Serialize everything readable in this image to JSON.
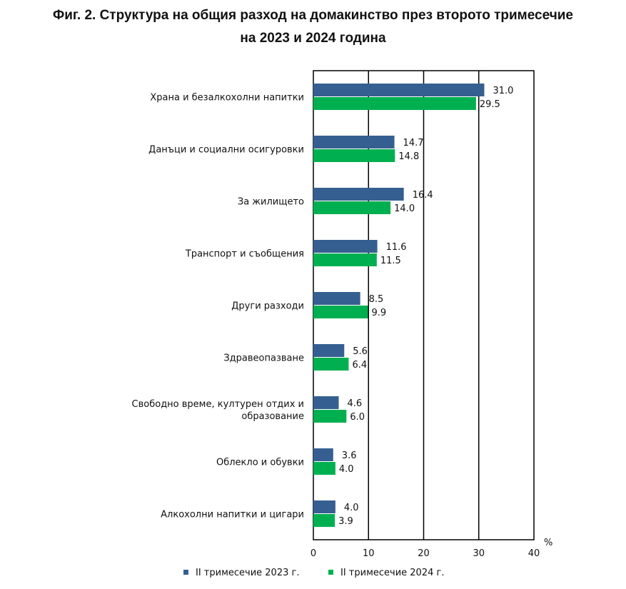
{
  "chart_data": {
    "type": "bar",
    "orientation": "horizontal",
    "title_line1": "Фиг. 2. Структура на общия разход на домакинство през второто тримесечие",
    "title_line2": "на 2023 и 2024 година",
    "categories": [
      [
        "Храна и безалкохолни напитки"
      ],
      [
        "Данъци и социални осигуровки"
      ],
      [
        "За жилището"
      ],
      [
        "Транспорт и съобщения"
      ],
      [
        "Други разходи"
      ],
      [
        "Здравеопазване"
      ],
      [
        "Свободно време, културен отдих и",
        "образование"
      ],
      [
        "Облекло и обувки"
      ],
      [
        "Алкохолни напитки и цигари"
      ]
    ],
    "series": [
      {
        "name": "II тримесечие 2023 г.",
        "color": "#365f91",
        "values": [
          31.0,
          14.7,
          16.4,
          11.6,
          8.5,
          5.6,
          4.6,
          3.6,
          4.0
        ],
        "labels": [
          "31.0",
          "14.7",
          "16.4",
          "11.6",
          "8.5",
          "5.6",
          "4.6",
          "3.6",
          "4.0"
        ]
      },
      {
        "name": "II тримесечие 2024 г.",
        "color": "#00b050",
        "values": [
          29.5,
          14.8,
          14.0,
          11.5,
          9.9,
          6.4,
          6.0,
          4.0,
          3.9
        ],
        "labels": [
          "29.5",
          "14.8",
          "14.0",
          "11.5",
          "9.9",
          "6.4",
          "6.0",
          "4.0",
          "3.9"
        ]
      }
    ],
    "xlim": [
      0,
      40
    ],
    "xticks": [
      "0",
      "10",
      "20",
      "30",
      "40"
    ],
    "xunit": "%",
    "grid": true,
    "legend": "bottom"
  }
}
